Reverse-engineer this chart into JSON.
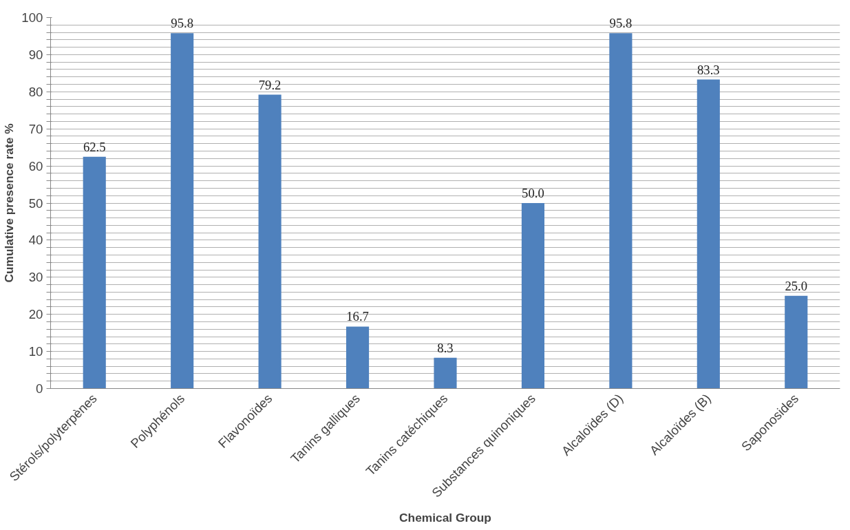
{
  "chart_data": {
    "type": "bar",
    "xlabel": "Chemical Group",
    "ylabel": "Cumulative presence rate %",
    "categories": [
      "Stérols/polyterpènes",
      "Polyphénols",
      "Flavonoïdes",
      "Tanins galliques",
      "Tanins catéchiques",
      "Substances quinoniques",
      "Alcaloïdes (D)",
      "Alcaloïdes (B)",
      "Saponosides"
    ],
    "values": [
      62.5,
      95.8,
      79.2,
      16.7,
      8.3,
      50.0,
      95.8,
      83.3,
      25.0
    ],
    "value_labels": [
      "62.5",
      "95.8",
      "79.2",
      "16.7",
      "8.3",
      "50.0",
      "95.8",
      "83.3",
      "25.0"
    ],
    "color": "#4f81bd",
    "ylim": [
      0,
      100
    ],
    "yticks": [
      0,
      {
        "value": 2,
        "label": null
      },
      {
        "value": 4,
        "label": null
      },
      {
        "value": 6,
        "label": null
      },
      {
        "value": 8,
        "label": null
      },
      10,
      {
        "value": 12,
        "label": null
      },
      {
        "value": 14,
        "label": null
      },
      {
        "value": 16,
        "label": null
      },
      {
        "value": 18,
        "label": null
      },
      20,
      {
        "value": 22,
        "label": null
      },
      {
        "value": 24,
        "label": null
      },
      {
        "value": 26,
        "label": null
      },
      {
        "value": 28,
        "label": null
      },
      30,
      {
        "value": 32,
        "label": null
      },
      {
        "value": 34,
        "label": null
      },
      {
        "value": 36,
        "label": null
      },
      {
        "value": 38,
        "label": null
      },
      40,
      {
        "value": 42,
        "label": null
      },
      {
        "value": 44,
        "label": null
      },
      {
        "value": 46,
        "label": null
      },
      {
        "value": 48,
        "label": null
      },
      50,
      {
        "value": 52,
        "label": null
      },
      {
        "value": 54,
        "label": null
      },
      {
        "value": 56,
        "label": null
      },
      {
        "value": 58,
        "label": null
      },
      60,
      {
        "value": 62,
        "label": null
      },
      {
        "value": 64,
        "label": null
      },
      {
        "value": 66,
        "label": null
      },
      {
        "value": 68,
        "label": null
      },
      70,
      {
        "value": 72,
        "label": null
      },
      {
        "value": 74,
        "label": null
      },
      {
        "value": 76,
        "label": null
      },
      {
        "value": 78,
        "label": null
      },
      80,
      {
        "value": 82,
        "label": null
      },
      {
        "value": 84,
        "label": null
      },
      {
        "value": 86,
        "label": null
      },
      {
        "value": 88,
        "label": null
      },
      90,
      {
        "value": 92,
        "label": null
      },
      {
        "value": 94,
        "label": null
      },
      {
        "value": 96,
        "label": null
      },
      {
        "value": 98,
        "label": null
      },
      100
    ],
    "grid": "y"
  }
}
